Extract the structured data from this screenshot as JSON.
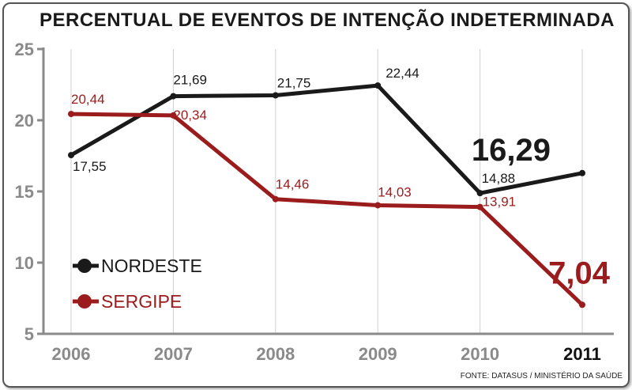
{
  "title": "PERCENTUAL DE EVENTOS DE INTENÇÃO INDETERMINADA",
  "source": "FONTE: DATASUS / MINISTÉRIO DA SAÚDE",
  "legend": [
    {
      "label": "NORDESTE",
      "color": "#1a1a1a"
    },
    {
      "label": "SERGIPE",
      "color": "#9b1c1c"
    }
  ],
  "colors": {
    "axis": "#8a8a8a",
    "grid": "#d0d0d0"
  },
  "chart_data": {
    "type": "line",
    "title": "PERCENTUAL DE EVENTOS DE INTENÇÃO INDETERMINADA",
    "xlabel": "",
    "ylabel": "",
    "categories": [
      "2006",
      "2007",
      "2008",
      "2009",
      "2010",
      "2011"
    ],
    "yticks": [
      "5",
      "10",
      "15",
      "20",
      "25"
    ],
    "ylim": [
      5,
      25
    ],
    "grid": "vertical",
    "legend_position": "bottom-left",
    "series": [
      {
        "name": "NORDESTE",
        "color": "#1a1a1a",
        "values": [
          17.55,
          21.69,
          21.75,
          22.44,
          14.88,
          16.29
        ],
        "labels": [
          "17,55",
          "21,69",
          "21,75",
          "22,44",
          "14,88",
          "16,29"
        ]
      },
      {
        "name": "SERGIPE",
        "color": "#9b1c1c",
        "values": [
          20.44,
          20.34,
          14.46,
          14.03,
          13.91,
          7.04
        ],
        "labels": [
          "20,44",
          "20,34",
          "14,46",
          "14,03",
          "13,91",
          "7,04"
        ]
      }
    ]
  }
}
